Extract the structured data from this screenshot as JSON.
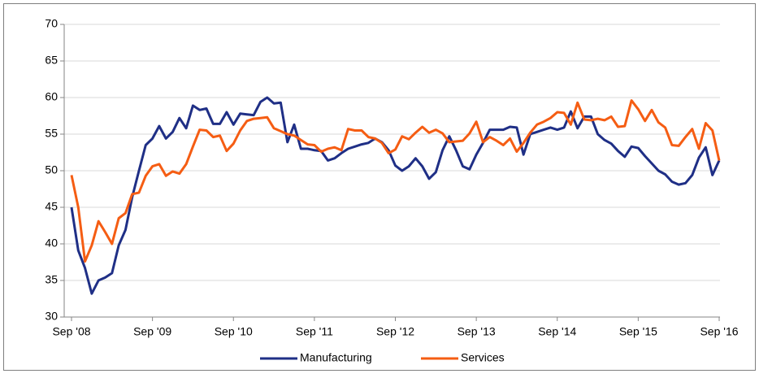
{
  "chart_data": {
    "type": "line",
    "categories": [
      "Sep '08",
      null,
      null,
      null,
      null,
      null,
      null,
      null,
      null,
      null,
      null,
      null,
      "Sep '09",
      null,
      null,
      null,
      null,
      null,
      null,
      null,
      null,
      null,
      null,
      null,
      "Sep '10",
      null,
      null,
      null,
      null,
      null,
      null,
      null,
      null,
      null,
      null,
      null,
      "Sep '11",
      null,
      null,
      null,
      null,
      null,
      null,
      null,
      null,
      null,
      null,
      null,
      "Sep '12",
      null,
      null,
      null,
      null,
      null,
      null,
      null,
      null,
      null,
      null,
      null,
      "Sep '13",
      null,
      null,
      null,
      null,
      null,
      null,
      null,
      null,
      null,
      null,
      null,
      "Sep '14",
      null,
      null,
      null,
      null,
      null,
      null,
      null,
      null,
      null,
      null,
      null,
      "Sep '15",
      null,
      null,
      null,
      null,
      null,
      null,
      null,
      null,
      null,
      null,
      null,
      "Sep '16"
    ],
    "series": [
      {
        "name": "Manufacturing",
        "color": "#1f2f86",
        "values": [
          45,
          39.1,
          36.7,
          33.2,
          35,
          35.4,
          36,
          39.8,
          41.9,
          46.4,
          50,
          53.5,
          54.4,
          56.1,
          54.4,
          55.3,
          57.2,
          55.8,
          58.9,
          58.3,
          58.5,
          56.4,
          56.4,
          58,
          56.3,
          57.8,
          57.7,
          57.6,
          59.4,
          60,
          59.2,
          59.3,
          53.9,
          56.3,
          53,
          53,
          52.8,
          52.7,
          51.4,
          51.7,
          52.4,
          53,
          53.3,
          53.6,
          53.8,
          54.4,
          53.9,
          52.8,
          50.7,
          50,
          50.6,
          51.7,
          50.6,
          48.9,
          49.8,
          52.8,
          54.7,
          52.8,
          50.6,
          50.2,
          52.2,
          53.8,
          55.6,
          55.6,
          55.6,
          56,
          55.9,
          52.2,
          55,
          55.3,
          55.6,
          55.9,
          55.6,
          55.9,
          58.1,
          55.8,
          57.4,
          57.4,
          55,
          54.2,
          53.7,
          52.7,
          51.9,
          53.3,
          53.1,
          52,
          51,
          50,
          49.5,
          48.5,
          48.1,
          48.3,
          49.4,
          51.8,
          53.2,
          49.4,
          51.4
        ]
      },
      {
        "name": "Services",
        "color": "#f55d13",
        "values": [
          49.4,
          45,
          37.6,
          39.8,
          43.1,
          41.6,
          40,
          43.5,
          44.2,
          46.8,
          47,
          49.3,
          50.6,
          50.9,
          49.3,
          49.9,
          49.6,
          50.9,
          53.3,
          55.6,
          55.5,
          54.6,
          54.8,
          52.7,
          53.7,
          55.5,
          56.8,
          57.1,
          57.2,
          57.3,
          55.8,
          55.4,
          55,
          54.8,
          54.2,
          53.6,
          53.5,
          52.6,
          53,
          53.2,
          52.8,
          55.7,
          55.5,
          55.5,
          54.6,
          54.4,
          53.8,
          52.4,
          52.9,
          54.7,
          54.3,
          55.2,
          56,
          55.2,
          55.6,
          55.1,
          53.9,
          54,
          54.1,
          55.1,
          56.7,
          53.9,
          54.6,
          54.1,
          53.5,
          54.4,
          52.6,
          53.8,
          55.2,
          56.3,
          56.7,
          57.2,
          58,
          57.9,
          56.3,
          59.3,
          57,
          56.9,
          57.1,
          56.9,
          57.4,
          56,
          56.1,
          59.6,
          58.4,
          56.8,
          58.3,
          56.6,
          55.9,
          53.5,
          53.4,
          54.6,
          55.7,
          53,
          56.5,
          55.5,
          51.4
        ]
      }
    ],
    "ylim": [
      30,
      70
    ],
    "yticks": [
      30,
      35,
      40,
      45,
      50,
      55,
      60,
      65,
      70
    ],
    "grid": true,
    "legend": "bottom"
  }
}
